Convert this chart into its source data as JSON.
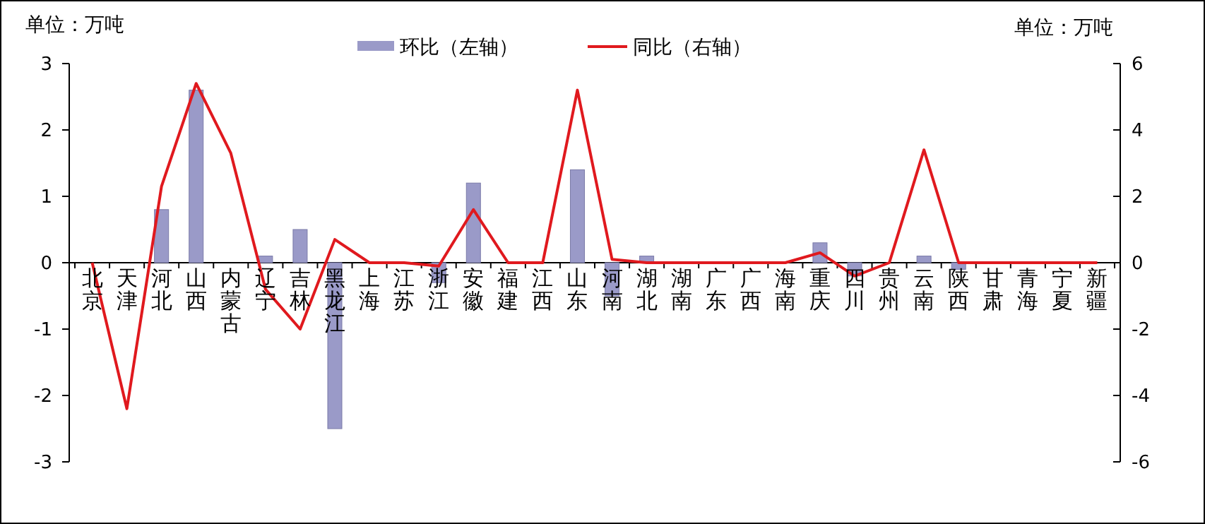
{
  "chart_data": {
    "type": "bar",
    "ylabel": "单位：万吨",
    "y2label": "单位：万吨",
    "categories": [
      "北京",
      "天津",
      "河北",
      "山西",
      "内蒙古",
      "辽宁",
      "吉林",
      "黑龙江",
      "上海",
      "江苏",
      "浙江",
      "安徽",
      "福建",
      "江西",
      "山东",
      "河南",
      "湖北",
      "湖南",
      "广东",
      "广西",
      "海南",
      "重庆",
      "四川",
      "贵州",
      "云南",
      "陕西",
      "甘肃",
      "青海",
      "宁夏",
      "新疆"
    ],
    "series": [
      {
        "name": "环比（左轴）",
        "color": "#9a9ac8",
        "values": [
          0,
          0,
          0.8,
          2.6,
          0,
          0.1,
          0.5,
          -2.5,
          0,
          0,
          -0.3,
          1.2,
          0,
          0,
          1.4,
          -0.5,
          0.1,
          0,
          0,
          0,
          0,
          0.3,
          -0.2,
          0,
          0.1,
          -0.1,
          0,
          0,
          0,
          0
        ]
      },
      {
        "name": "同比（右轴）",
        "type": "line",
        "axis": "y2",
        "color": "#e0191e",
        "values": [
          0,
          -4.4,
          2.3,
          5.4,
          3.3,
          -0.8,
          -2,
          0.7,
          0,
          0,
          -0.1,
          1.6,
          0,
          0,
          5.2,
          0.1,
          0,
          0,
          0,
          0,
          0,
          0.3,
          -0.4,
          0,
          3.4,
          0,
          0,
          0,
          0,
          0
        ]
      }
    ],
    "ylim": [
      -3,
      3
    ],
    "yticks": [
      -3,
      -2,
      -1,
      0,
      1,
      2,
      3
    ],
    "y2lim": [
      -6,
      6
    ],
    "y2ticks": [
      -6,
      -4,
      -2,
      0,
      2,
      4,
      6
    ],
    "legend": "top",
    "grid": false,
    "marker": "none",
    "line_style": "solid"
  }
}
